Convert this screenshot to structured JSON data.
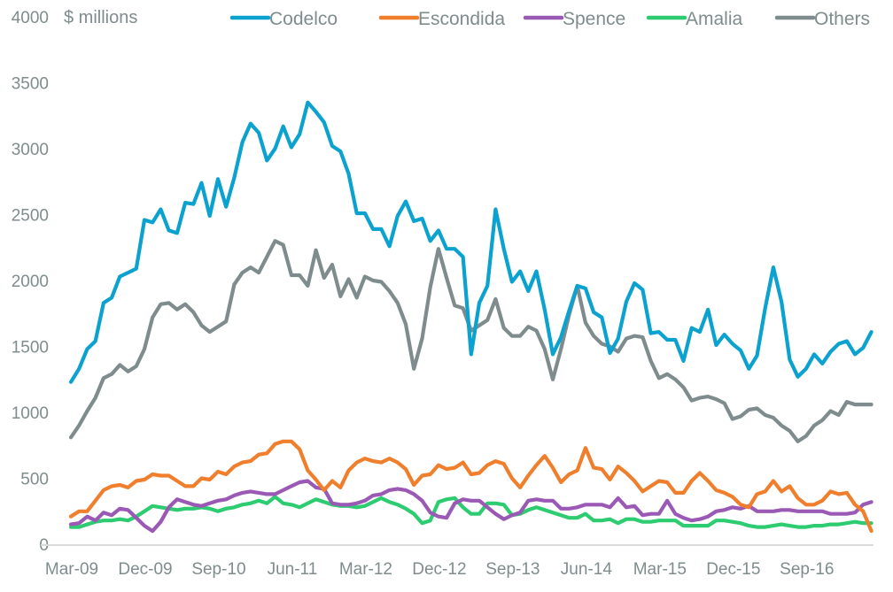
{
  "chart_data": {
    "type": "line",
    "title": "",
    "unit_label": "$ millions",
    "xlabel": "",
    "ylabel": "$ millions",
    "ylim": [
      0,
      4000
    ],
    "yticks": [
      0,
      500,
      1000,
      1500,
      2000,
      2500,
      3000,
      3500,
      4000
    ],
    "ytick_labels": [
      "0",
      "500",
      "1000",
      "1500",
      "2000",
      "2500",
      "3000",
      "3500",
      "4000"
    ],
    "x_start": "Mar-09",
    "x_frequency": "monthly",
    "x_tick_labels": [
      "Mar-09",
      "Dec-09",
      "Sep-10",
      "Jun-11",
      "Mar-12",
      "Dec-12",
      "Sep-13",
      "Jun-14",
      "Mar-15",
      "Dec-15",
      "Sep-16"
    ],
    "x_tick_step_months": 9,
    "grid": false,
    "legend_position": "top",
    "series": [
      {
        "name": "Codelco",
        "color": "#0ba2d0",
        "values": [
          1230,
          1330,
          1480,
          1540,
          1830,
          1870,
          2030,
          2060,
          2090,
          2460,
          2440,
          2540,
          2380,
          2360,
          2590,
          2580,
          2740,
          2490,
          2770,
          2560,
          2780,
          3050,
          3190,
          3120,
          2910,
          3000,
          3170,
          3010,
          3110,
          3350,
          3280,
          3200,
          3020,
          2980,
          2810,
          2510,
          2510,
          2390,
          2390,
          2260,
          2490,
          2600,
          2450,
          2470,
          2300,
          2380,
          2240,
          2240,
          2180,
          1440,
          1830,
          1960,
          2540,
          2240,
          1990,
          2070,
          1920,
          2070,
          1780,
          1440,
          1570,
          1770,
          1960,
          1940,
          1760,
          1720,
          1450,
          1560,
          1840,
          1980,
          1930,
          1600,
          1610,
          1550,
          1550,
          1390,
          1640,
          1610,
          1780,
          1510,
          1590,
          1520,
          1470,
          1330,
          1430,
          1790,
          2100,
          1840,
          1400,
          1270,
          1330,
          1440,
          1370,
          1460,
          1520,
          1540,
          1440,
          1490,
          1610
        ]
      },
      {
        "name": "Escondida",
        "color": "#f07f2d",
        "values": [
          210,
          250,
          250,
          330,
          410,
          440,
          450,
          430,
          480,
          490,
          530,
          520,
          520,
          480,
          440,
          440,
          500,
          490,
          550,
          530,
          590,
          620,
          630,
          680,
          690,
          760,
          780,
          780,
          720,
          560,
          490,
          410,
          480,
          430,
          560,
          620,
          650,
          630,
          620,
          650,
          620,
          570,
          450,
          520,
          530,
          600,
          570,
          580,
          620,
          530,
          540,
          600,
          630,
          610,
          500,
          430,
          520,
          600,
          670,
          580,
          470,
          530,
          560,
          730,
          580,
          570,
          490,
          590,
          540,
          480,
          400,
          440,
          480,
          470,
          390,
          390,
          480,
          540,
          480,
          410,
          390,
          360,
          300,
          280,
          380,
          400,
          480,
          400,
          440,
          350,
          300,
          300,
          330,
          400,
          380,
          390,
          300,
          250,
          100
        ]
      },
      {
        "name": "Spence",
        "color": "#9b59b6",
        "values": [
          150,
          160,
          210,
          180,
          240,
          220,
          270,
          260,
          200,
          140,
          100,
          170,
          280,
          340,
          320,
          300,
          290,
          310,
          330,
          340,
          370,
          390,
          400,
          390,
          380,
          380,
          410,
          440,
          470,
          480,
          430,
          420,
          310,
          300,
          300,
          310,
          330,
          370,
          380,
          410,
          420,
          410,
          380,
          330,
          240,
          210,
          200,
          310,
          340,
          330,
          330,
          280,
          230,
          190,
          220,
          240,
          330,
          340,
          330,
          330,
          270,
          270,
          280,
          300,
          300,
          300,
          280,
          350,
          280,
          290,
          220,
          230,
          230,
          330,
          230,
          200,
          180,
          190,
          210,
          250,
          260,
          280,
          270,
          290,
          250,
          250,
          250,
          260,
          260,
          250,
          250,
          250,
          250,
          230,
          230,
          230,
          240,
          300,
          320
        ]
      },
      {
        "name": "Amalia",
        "color": "#2ecc71",
        "values": [
          130,
          130,
          150,
          170,
          180,
          180,
          190,
          180,
          210,
          250,
          290,
          280,
          270,
          260,
          270,
          270,
          280,
          270,
          250,
          270,
          280,
          300,
          310,
          330,
          310,
          360,
          310,
          300,
          280,
          310,
          340,
          320,
          300,
          290,
          290,
          280,
          290,
          320,
          350,
          320,
          300,
          270,
          230,
          160,
          180,
          320,
          340,
          350,
          280,
          230,
          230,
          310,
          310,
          300,
          220,
          230,
          260,
          280,
          260,
          240,
          220,
          200,
          200,
          230,
          180,
          180,
          190,
          160,
          190,
          190,
          170,
          170,
          180,
          180,
          180,
          140,
          140,
          140,
          140,
          180,
          180,
          170,
          160,
          140,
          130,
          130,
          140,
          150,
          140,
          130,
          130,
          140,
          140,
          150,
          150,
          160,
          170,
          160,
          160
        ]
      },
      {
        "name": "Others",
        "color": "#7f8c8d",
        "values": [
          810,
          900,
          1010,
          1110,
          1260,
          1290,
          1360,
          1310,
          1350,
          1480,
          1720,
          1820,
          1830,
          1780,
          1820,
          1760,
          1660,
          1610,
          1650,
          1690,
          1970,
          2060,
          2100,
          2060,
          2180,
          2300,
          2270,
          2040,
          2040,
          1960,
          2230,
          2020,
          2120,
          1880,
          2010,
          1870,
          2030,
          2000,
          1990,
          1920,
          1830,
          1670,
          1330,
          1560,
          1950,
          2240,
          2020,
          1810,
          1790,
          1620,
          1660,
          1700,
          1860,
          1640,
          1580,
          1580,
          1650,
          1620,
          1480,
          1250,
          1480,
          1740,
          1960,
          1680,
          1580,
          1520,
          1500,
          1460,
          1560,
          1580,
          1570,
          1390,
          1260,
          1290,
          1250,
          1190,
          1090,
          1110,
          1120,
          1100,
          1070,
          950,
          970,
          1020,
          1030,
          980,
          960,
          900,
          860,
          780,
          820,
          900,
          940,
          1010,
          980,
          1080,
          1060,
          1060,
          1060
        ]
      }
    ]
  }
}
